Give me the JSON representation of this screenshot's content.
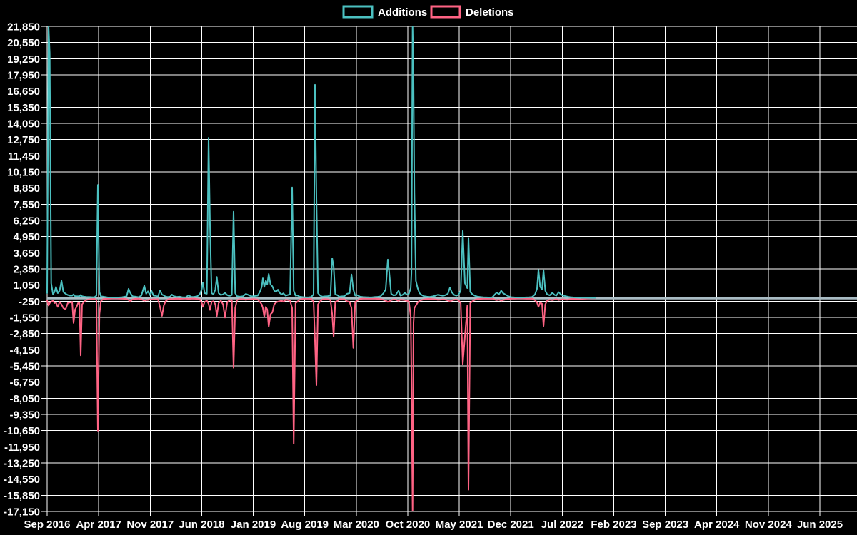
{
  "chart_data": {
    "type": "line",
    "title": "",
    "legend_position": "top-center",
    "background": "#000000",
    "grid_color": "#ffffff",
    "zero_line_color": "#a9bcc4",
    "series": [
      {
        "name": "Additions",
        "color": "#4bc0c0"
      },
      {
        "name": "Deletions",
        "color": "#ff6384"
      }
    ],
    "x_tick_labels": [
      "Sep 2016",
      "Apr 2017",
      "Nov 2017",
      "Jun 2018",
      "Jan 2019",
      "Aug 2019",
      "Mar 2020",
      "Oct 2020",
      "May 2021",
      "Dec 2021",
      "Jul 2022",
      "Feb 2023",
      "Sep 2023",
      "Apr 2024",
      "Nov 2024",
      "Jun 2025"
    ],
    "x_tick_interval_months": 7,
    "y_ticks": [
      21850,
      20550,
      19250,
      17950,
      16650,
      15350,
      14050,
      12750,
      11450,
      10150,
      8850,
      7550,
      6250,
      4950,
      3650,
      2350,
      1050,
      -250,
      -1550,
      -2850,
      -4150,
      -5450,
      -6750,
      -8050,
      -9350,
      -10650,
      -11950,
      -13250,
      -14550,
      -15850,
      -17150
    ],
    "ylim": [
      -17150,
      21850
    ],
    "y_step": 1300,
    "points_format": [
      "months_after_sep_2016",
      "additions",
      "deletions"
    ],
    "points": [
      [
        0,
        400,
        -200
      ],
      [
        0.19,
        21900,
        -600
      ],
      [
        0.35,
        19700,
        -400
      ],
      [
        0.55,
        1200,
        -300
      ],
      [
        0.8,
        300,
        -200
      ],
      [
        1.0,
        500,
        -400
      ],
      [
        1.2,
        900,
        -350
      ],
      [
        1.45,
        400,
        -700
      ],
      [
        1.7,
        600,
        -300
      ],
      [
        1.95,
        1400,
        -500
      ],
      [
        2.2,
        500,
        -800
      ],
      [
        2.5,
        350,
        -900
      ],
      [
        2.8,
        250,
        -400
      ],
      [
        3.1,
        200,
        -350
      ],
      [
        3.4,
        200,
        -300
      ],
      [
        3.59,
        300,
        -2000
      ],
      [
        3.8,
        150,
        -900
      ],
      [
        4.0,
        150,
        -700
      ],
      [
        4.2,
        150,
        -400
      ],
      [
        4.4,
        150,
        -400
      ],
      [
        4.56,
        250,
        -4600
      ],
      [
        4.75,
        150,
        -500
      ],
      [
        5.0,
        120,
        -300
      ],
      [
        5.3,
        100,
        -150
      ],
      [
        5.7,
        90,
        -100
      ],
      [
        6.1,
        80,
        -70
      ],
      [
        6.4,
        70,
        -60
      ],
      [
        6.7,
        200,
        -150
      ],
      [
        6.89,
        9100,
        -10650
      ],
      [
        7.1,
        500,
        -1300
      ],
      [
        7.3,
        150,
        -250
      ],
      [
        7.6,
        120,
        -80
      ],
      [
        8.2,
        60,
        -40
      ],
      [
        8.8,
        50,
        -30
      ],
      [
        9.5,
        40,
        -30
      ],
      [
        10.2,
        80,
        -40
      ],
      [
        10.8,
        150,
        -80
      ],
      [
        11.06,
        750,
        -150
      ],
      [
        11.3,
        420,
        -250
      ],
      [
        11.6,
        150,
        -100
      ],
      [
        12.0,
        120,
        -60
      ],
      [
        12.4,
        80,
        -40
      ],
      [
        12.8,
        200,
        -100
      ],
      [
        13.2,
        1000,
        -200
      ],
      [
        13.45,
        350,
        -150
      ],
      [
        13.7,
        550,
        -150
      ],
      [
        13.95,
        250,
        -100
      ],
      [
        14.17,
        600,
        -120
      ],
      [
        14.45,
        200,
        -80
      ],
      [
        14.75,
        180,
        -100
      ],
      [
        15.05,
        120,
        -80
      ],
      [
        15.33,
        620,
        -700
      ],
      [
        15.6,
        280,
        -1430
      ],
      [
        15.85,
        220,
        -600
      ],
      [
        16.1,
        120,
        -250
      ],
      [
        16.4,
        90,
        -100
      ],
      [
        16.7,
        120,
        -60
      ],
      [
        16.95,
        280,
        -90
      ],
      [
        17.25,
        150,
        -60
      ],
      [
        17.6,
        100,
        -50
      ],
      [
        18.0,
        120,
        -60
      ],
      [
        18.4,
        70,
        -40
      ],
      [
        18.8,
        60,
        -30
      ],
      [
        19.2,
        220,
        -70
      ],
      [
        19.6,
        100,
        -40
      ],
      [
        20.0,
        110,
        -50
      ],
      [
        20.4,
        150,
        -70
      ],
      [
        20.75,
        320,
        -110
      ],
      [
        21.0,
        700,
        -350
      ],
      [
        21.16,
        1250,
        -700
      ],
      [
        21.4,
        400,
        -300
      ],
      [
        21.7,
        350,
        -200
      ],
      [
        21.93,
        12900,
        -450
      ],
      [
        22.13,
        5900,
        -950
      ],
      [
        22.35,
        400,
        -300
      ],
      [
        22.6,
        300,
        -250
      ],
      [
        22.85,
        700,
        -500
      ],
      [
        23.05,
        1700,
        -1450
      ],
      [
        23.3,
        400,
        -400
      ],
      [
        23.6,
        250,
        -200
      ],
      [
        23.9,
        300,
        -500
      ],
      [
        24.16,
        420,
        -1570
      ],
      [
        24.45,
        250,
        -350
      ],
      [
        24.7,
        180,
        -200
      ],
      [
        24.9,
        200,
        -150
      ],
      [
        25.1,
        250,
        -150
      ],
      [
        25.33,
        6950,
        -5600
      ],
      [
        25.55,
        400,
        -800
      ],
      [
        25.8,
        150,
        -150
      ],
      [
        26.2,
        120,
        -80
      ],
      [
        26.6,
        150,
        -90
      ],
      [
        27.0,
        340,
        -140
      ],
      [
        27.35,
        250,
        -100
      ],
      [
        27.7,
        160,
        -90
      ],
      [
        28.0,
        140,
        -70
      ],
      [
        28.3,
        180,
        -90
      ],
      [
        28.6,
        200,
        -110
      ],
      [
        28.9,
        500,
        -300
      ],
      [
        29.15,
        900,
        -500
      ],
      [
        29.31,
        1600,
        -800
      ],
      [
        29.5,
        900,
        -1500
      ],
      [
        29.7,
        1400,
        -700
      ],
      [
        29.9,
        1100,
        -900
      ],
      [
        30.1,
        1950,
        -2300
      ],
      [
        30.35,
        1100,
        -1300
      ],
      [
        30.6,
        950,
        -1150
      ],
      [
        30.85,
        600,
        -500
      ],
      [
        31.1,
        500,
        -350
      ],
      [
        31.35,
        680,
        -280
      ],
      [
        31.6,
        420,
        -250
      ],
      [
        31.85,
        300,
        -200
      ],
      [
        32.1,
        380,
        -280
      ],
      [
        32.4,
        200,
        -120
      ],
      [
        32.7,
        250,
        -150
      ],
      [
        33.0,
        300,
        -200
      ],
      [
        33.29,
        8900,
        -800
      ],
      [
        33.5,
        600,
        -11700
      ],
      [
        33.75,
        200,
        -400
      ],
      [
        34.0,
        220,
        -280
      ],
      [
        34.3,
        120,
        -120
      ],
      [
        34.7,
        90,
        -60
      ],
      [
        35.1,
        70,
        -50
      ],
      [
        35.5,
        60,
        -40
      ],
      [
        35.9,
        100,
        -60
      ],
      [
        36.2,
        300,
        -300
      ],
      [
        36.39,
        17150,
        -3400
      ],
      [
        36.59,
        8100,
        -7000
      ],
      [
        36.8,
        400,
        -500
      ],
      [
        37.1,
        200,
        -250
      ],
      [
        37.4,
        120,
        -100
      ],
      [
        37.7,
        140,
        -80
      ],
      [
        38.1,
        160,
        -90
      ],
      [
        38.5,
        200,
        -150
      ],
      [
        38.73,
        3200,
        -1300
      ],
      [
        38.92,
        2550,
        -3100
      ],
      [
        39.15,
        300,
        -300
      ],
      [
        39.4,
        250,
        -250
      ],
      [
        39.7,
        120,
        -80
      ],
      [
        40.0,
        140,
        -90
      ],
      [
        40.4,
        160,
        -100
      ],
      [
        40.75,
        350,
        -250
      ],
      [
        41.1,
        400,
        -300
      ],
      [
        41.35,
        1900,
        -800
      ],
      [
        41.6,
        700,
        -4000
      ],
      [
        41.85,
        200,
        -300
      ],
      [
        42.1,
        250,
        -200
      ],
      [
        42.5,
        120,
        -70
      ],
      [
        42.9,
        90,
        -50
      ],
      [
        43.3,
        80,
        -50
      ],
      [
        43.7,
        70,
        -40
      ],
      [
        44.1,
        60,
        -40
      ],
      [
        44.5,
        90,
        -50
      ],
      [
        44.9,
        110,
        -60
      ],
      [
        45.3,
        140,
        -80
      ],
      [
        45.7,
        400,
        -140
      ],
      [
        46.0,
        700,
        -200
      ],
      [
        46.29,
        3100,
        -300
      ],
      [
        46.49,
        2000,
        -260
      ],
      [
        46.75,
        350,
        -160
      ],
      [
        47.05,
        220,
        -110
      ],
      [
        47.36,
        250,
        -120
      ],
      [
        47.75,
        600,
        -220
      ],
      [
        48.0,
        200,
        -120
      ],
      [
        48.3,
        260,
        -140
      ],
      [
        48.6,
        420,
        -160
      ],
      [
        48.9,
        280,
        -220
      ],
      [
        49.15,
        350,
        -250
      ],
      [
        49.4,
        800,
        -1500
      ],
      [
        49.5,
        2000,
        -6300
      ],
      [
        49.66,
        21900,
        -17100
      ],
      [
        49.78,
        17500,
        -2000
      ],
      [
        49.9,
        8500,
        -800
      ],
      [
        50.1,
        1400,
        -600
      ],
      [
        50.35,
        800,
        -350
      ],
      [
        50.6,
        400,
        -200
      ],
      [
        50.9,
        250,
        -150
      ],
      [
        51.2,
        160,
        -100
      ],
      [
        51.6,
        120,
        -70
      ],
      [
        52.0,
        100,
        -60
      ],
      [
        52.4,
        140,
        -80
      ],
      [
        52.8,
        200,
        -100
      ],
      [
        53.1,
        280,
        -140
      ],
      [
        53.45,
        220,
        -120
      ],
      [
        53.8,
        180,
        -100
      ],
      [
        54.1,
        240,
        -130
      ],
      [
        54.45,
        350,
        -180
      ],
      [
        54.73,
        850,
        -260
      ],
      [
        55.0,
        450,
        -180
      ],
      [
        55.3,
        260,
        -130
      ],
      [
        55.6,
        200,
        -110
      ],
      [
        55.9,
        260,
        -160
      ],
      [
        56.2,
        600,
        -400
      ],
      [
        56.48,
        5400,
        -5300
      ],
      [
        56.77,
        1200,
        -3100
      ],
      [
        57.1,
        800,
        -600
      ],
      [
        57.26,
        4850,
        -15400
      ],
      [
        57.5,
        500,
        -400
      ],
      [
        57.8,
        300,
        -250
      ],
      [
        58.1,
        200,
        -140
      ],
      [
        58.5,
        120,
        -80
      ],
      [
        58.9,
        90,
        -60
      ],
      [
        59.3,
        70,
        -50
      ],
      [
        59.7,
        60,
        -40
      ],
      [
        60.1,
        50,
        -40
      ],
      [
        60.5,
        70,
        -40
      ],
      [
        60.85,
        300,
        -120
      ],
      [
        61.1,
        450,
        -160
      ],
      [
        61.4,
        300,
        -120
      ],
      [
        61.7,
        600,
        -200
      ],
      [
        61.95,
        400,
        -150
      ],
      [
        62.3,
        280,
        -110
      ],
      [
        62.7,
        140,
        -70
      ],
      [
        63.1,
        80,
        -50
      ],
      [
        63.5,
        60,
        -40
      ],
      [
        63.9,
        50,
        -30
      ],
      [
        64.3,
        40,
        -30
      ],
      [
        64.7,
        50,
        -30
      ],
      [
        65.1,
        60,
        -40
      ],
      [
        65.5,
        70,
        -40
      ],
      [
        65.9,
        90,
        -50
      ],
      [
        66.3,
        300,
        -160
      ],
      [
        66.57,
        750,
        -350
      ],
      [
        66.77,
        2280,
        -700
      ],
      [
        67.0,
        900,
        -350
      ],
      [
        67.25,
        700,
        -450
      ],
      [
        67.45,
        2250,
        -2250
      ],
      [
        67.7,
        600,
        -500
      ],
      [
        67.95,
        300,
        -200
      ],
      [
        68.3,
        220,
        -120
      ],
      [
        68.65,
        430,
        -160
      ],
      [
        68.95,
        260,
        -110
      ],
      [
        69.2,
        200,
        -90
      ],
      [
        69.5,
        480,
        -150
      ],
      [
        69.8,
        300,
        -110
      ],
      [
        70.1,
        200,
        -90
      ],
      [
        70.45,
        160,
        -120
      ],
      [
        70.8,
        110,
        -130
      ],
      [
        71.1,
        80,
        -70
      ],
      [
        71.45,
        60,
        -60
      ],
      [
        71.8,
        50,
        -70
      ],
      [
        72.1,
        40,
        -90
      ],
      [
        72.45,
        35,
        -110
      ],
      [
        72.75,
        30,
        -60
      ],
      [
        73.1,
        25,
        -40
      ],
      [
        73.5,
        20,
        -30
      ],
      [
        74.0,
        15,
        -20
      ],
      [
        74.5,
        10,
        -15
      ]
    ]
  }
}
